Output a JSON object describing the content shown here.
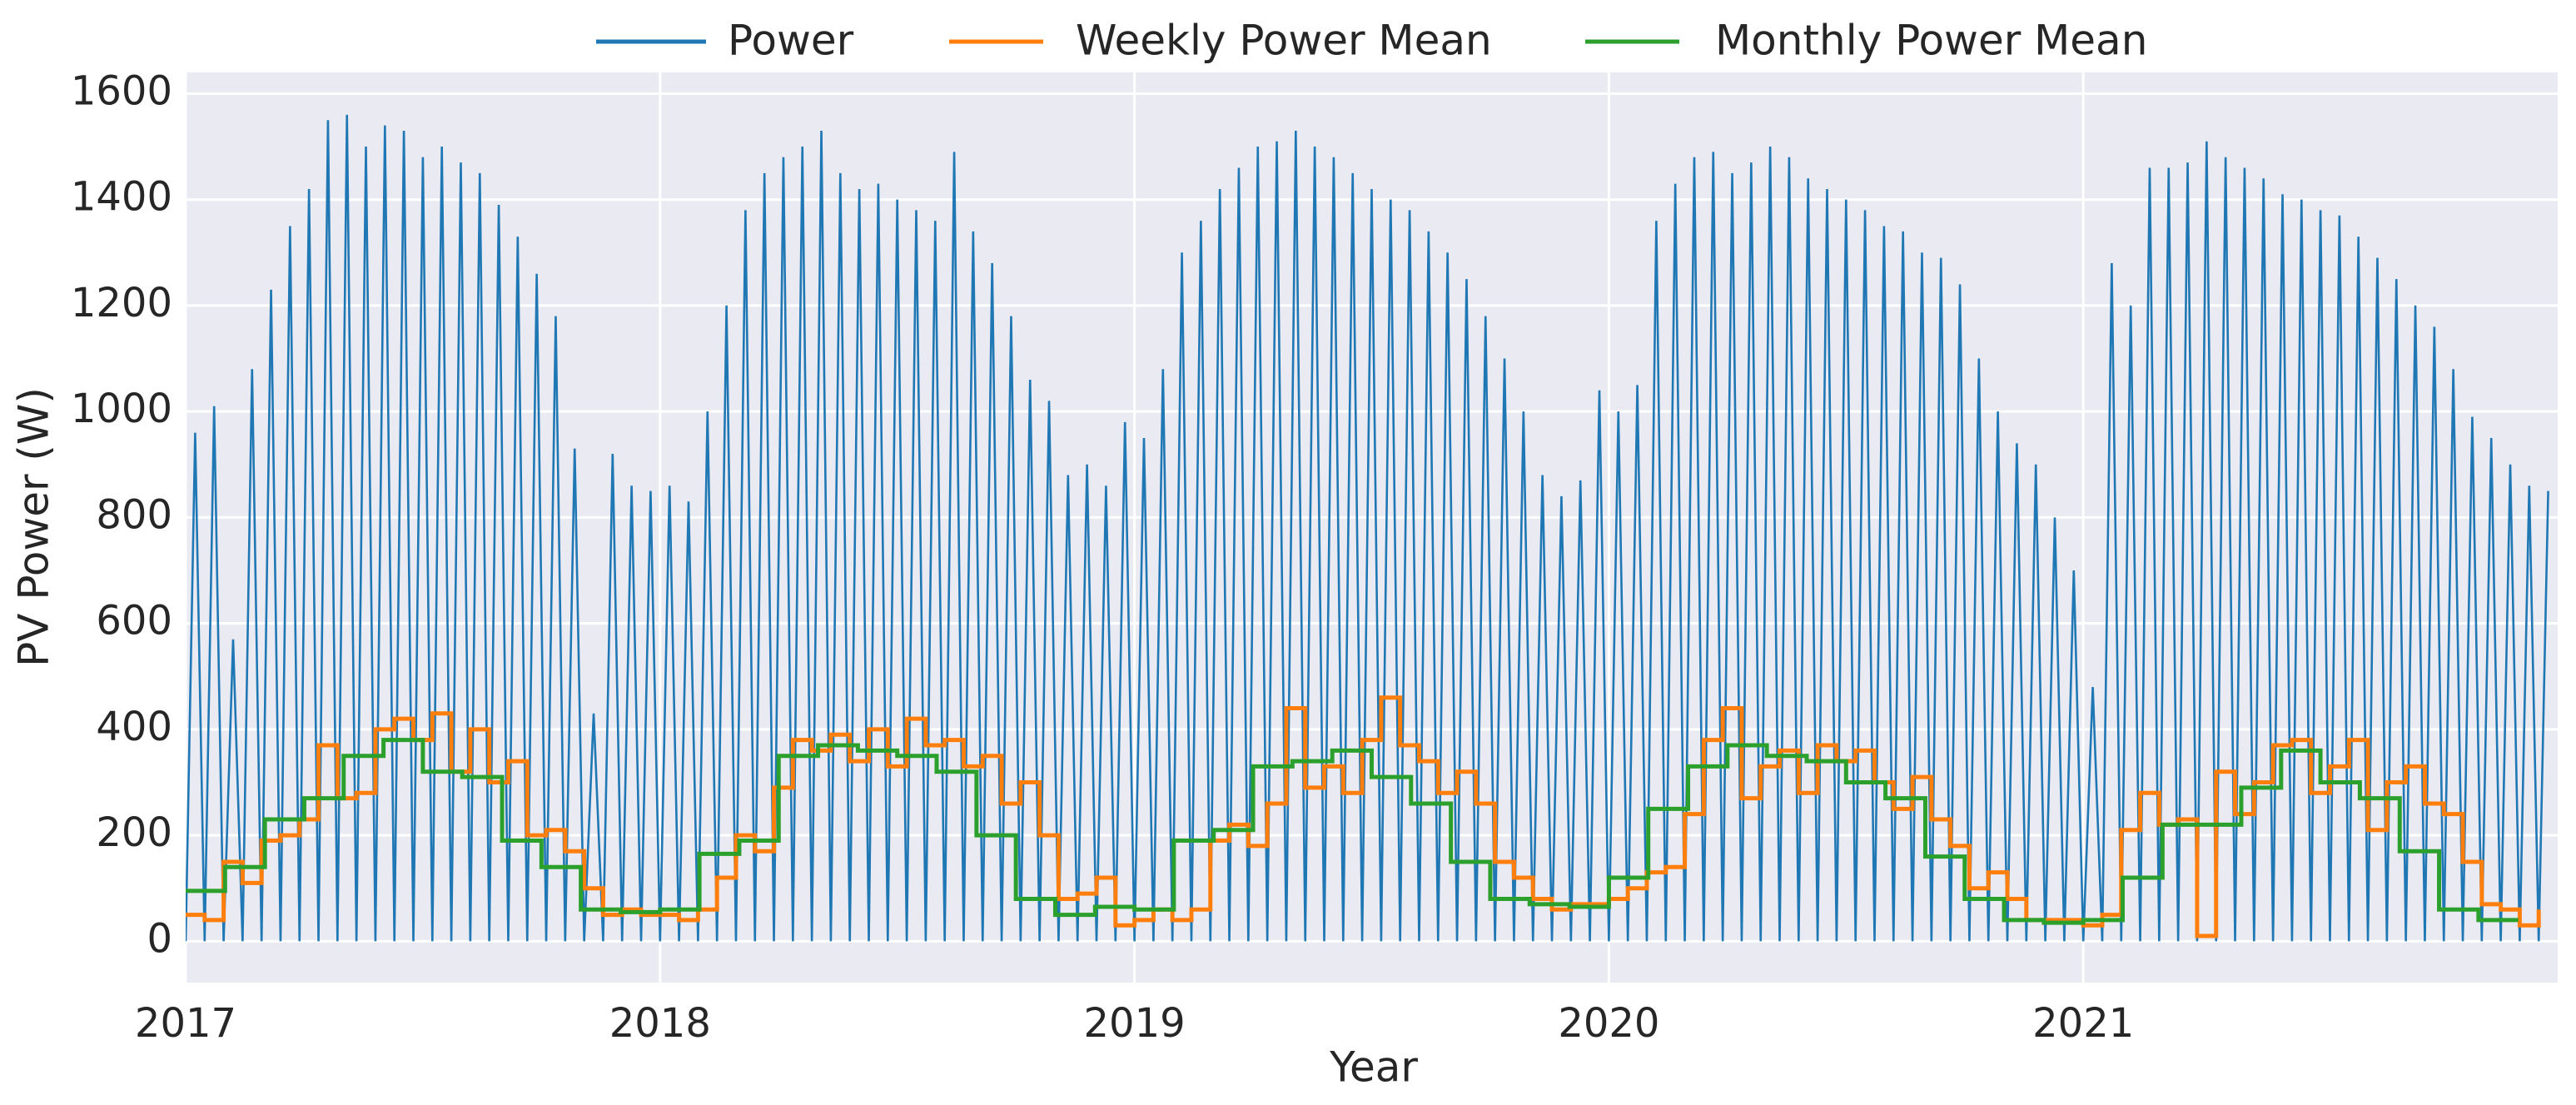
{
  "chart_data": {
    "type": "line",
    "xlabel": "Year",
    "ylabel": "PV Power (W)",
    "xlim": [
      2017,
      2022
    ],
    "ylim": [
      -78,
      1640
    ],
    "xticks": [
      2017,
      2018,
      2019,
      2020,
      2021
    ],
    "yticks": [
      0,
      200,
      400,
      600,
      800,
      1000,
      1200,
      1400,
      1600
    ],
    "grid": true,
    "legend": "top",
    "series": [
      {
        "name": "Power",
        "color": "#1f77b4",
        "x": [
          2017,
          2017.02,
          2017.04,
          2017.06,
          2017.08,
          2017.1,
          2017.12,
          2017.14,
          2017.16,
          2017.18,
          2017.2,
          2017.22,
          2017.24,
          2017.26,
          2017.28,
          2017.3,
          2017.32,
          2017.34,
          2017.36,
          2017.38,
          2017.4,
          2017.42,
          2017.44,
          2017.46,
          2017.48,
          2017.5,
          2017.52,
          2017.54,
          2017.56,
          2017.58,
          2017.6,
          2017.62,
          2017.64,
          2017.66,
          2017.68,
          2017.7,
          2017.72,
          2017.74,
          2017.76,
          2017.78,
          2017.8,
          2017.82,
          2017.84,
          2017.86,
          2017.88,
          2017.9,
          2017.92,
          2017.94,
          2017.96,
          2017.98,
          2018,
          2018.02,
          2018.04,
          2018.06,
          2018.08,
          2018.1,
          2018.12,
          2018.14,
          2018.16,
          2018.18,
          2018.2,
          2018.22,
          2018.24,
          2018.26,
          2018.28,
          2018.3,
          2018.32,
          2018.34,
          2018.36,
          2018.38,
          2018.4,
          2018.42,
          2018.44,
          2018.46,
          2018.48,
          2018.5,
          2018.52,
          2018.54,
          2018.56,
          2018.58,
          2018.6,
          2018.62,
          2018.64,
          2018.66,
          2018.68,
          2018.7,
          2018.72,
          2018.74,
          2018.76,
          2018.78,
          2018.8,
          2018.82,
          2018.84,
          2018.86,
          2018.88,
          2018.9,
          2018.92,
          2018.94,
          2018.96,
          2018.98,
          2019,
          2019.02,
          2019.04,
          2019.06,
          2019.08,
          2019.1,
          2019.12,
          2019.14,
          2019.16,
          2019.18,
          2019.2,
          2019.22,
          2019.24,
          2019.26,
          2019.28,
          2019.3,
          2019.32,
          2019.34,
          2019.36,
          2019.38,
          2019.4,
          2019.42,
          2019.44,
          2019.46,
          2019.48,
          2019.5,
          2019.52,
          2019.54,
          2019.56,
          2019.58,
          2019.6,
          2019.62,
          2019.64,
          2019.66,
          2019.68,
          2019.7,
          2019.72,
          2019.74,
          2019.76,
          2019.78,
          2019.8,
          2019.82,
          2019.84,
          2019.86,
          2019.88,
          2019.9,
          2019.92,
          2019.94,
          2019.96,
          2019.98,
          2020,
          2020.02,
          2020.04,
          2020.06,
          2020.08,
          2020.1,
          2020.12,
          2020.14,
          2020.16,
          2020.18,
          2020.2,
          2020.22,
          2020.24,
          2020.26,
          2020.28,
          2020.3,
          2020.32,
          2020.34,
          2020.36,
          2020.38,
          2020.4,
          2020.42,
          2020.44,
          2020.46,
          2020.48,
          2020.5,
          2020.52,
          2020.54,
          2020.56,
          2020.58,
          2020.6,
          2020.62,
          2020.64,
          2020.66,
          2020.68,
          2020.7,
          2020.72,
          2020.74,
          2020.76,
          2020.78,
          2020.8,
          2020.82,
          2020.84,
          2020.86,
          2020.88,
          2020.9,
          2020.92,
          2020.94,
          2020.96,
          2020.98,
          2021,
          2021.02,
          2021.04,
          2021.06,
          2021.08,
          2021.1,
          2021.12,
          2021.14,
          2021.16,
          2021.18,
          2021.2,
          2021.22,
          2021.24,
          2021.26,
          2021.28,
          2021.3,
          2021.32,
          2021.34,
          2021.36,
          2021.38,
          2021.4,
          2021.42,
          2021.44,
          2021.46,
          2021.48,
          2021.5,
          2021.52,
          2021.54,
          2021.56,
          2021.58,
          2021.6,
          2021.62,
          2021.64,
          2021.66,
          2021.68,
          2021.7,
          2021.72,
          2021.74,
          2021.76,
          2021.78,
          2021.8,
          2021.82,
          2021.84,
          2021.86,
          2021.88,
          2021.9,
          2021.92,
          2021.94,
          2021.96,
          2021.98
        ],
        "values": [
          0,
          960,
          0,
          1010,
          0,
          570,
          0,
          1080,
          0,
          1230,
          0,
          1350,
          0,
          1420,
          0,
          1550,
          0,
          1560,
          0,
          1500,
          0,
          1540,
          0,
          1530,
          0,
          1480,
          0,
          1500,
          0,
          1470,
          0,
          1450,
          0,
          1390,
          0,
          1330,
          0,
          1260,
          0,
          1180,
          0,
          930,
          0,
          430,
          0,
          920,
          0,
          860,
          0,
          850,
          0,
          860,
          0,
          830,
          0,
          1000,
          0,
          1200,
          0,
          1380,
          0,
          1450,
          0,
          1480,
          0,
          1500,
          0,
          1530,
          0,
          1450,
          0,
          1420,
          0,
          1430,
          0,
          1400,
          0,
          1380,
          0,
          1360,
          0,
          1490,
          0,
          1340,
          0,
          1280,
          0,
          1180,
          0,
          1060,
          0,
          1020,
          0,
          880,
          0,
          900,
          0,
          860,
          0,
          980,
          0,
          950,
          0,
          1080,
          0,
          1300,
          0,
          1360,
          0,
          1420,
          0,
          1460,
          0,
          1500,
          0,
          1510,
          0,
          1530,
          0,
          1500,
          0,
          1480,
          0,
          1450,
          0,
          1420,
          0,
          1400,
          0,
          1380,
          0,
          1340,
          0,
          1300,
          0,
          1250,
          0,
          1180,
          0,
          1100,
          0,
          1000,
          0,
          880,
          0,
          840,
          0,
          870,
          0,
          1040,
          0,
          1000,
          0,
          1050,
          0,
          1360,
          0,
          1430,
          0,
          1480,
          0,
          1490,
          0,
          1450,
          0,
          1470,
          0,
          1500,
          0,
          1480,
          0,
          1440,
          0,
          1420,
          0,
          1400,
          0,
          1380,
          0,
          1350,
          0,
          1340,
          0,
          1300,
          0,
          1290,
          0,
          1240,
          0,
          1100,
          0,
          1000,
          0,
          940,
          0,
          900,
          0,
          800,
          0,
          700,
          0,
          480,
          0,
          1280,
          0,
          1200,
          0,
          1460,
          0,
          1460,
          0,
          1470,
          0,
          1510,
          0,
          1480,
          0,
          1460,
          0,
          1440,
          0,
          1410,
          0,
          1400,
          0,
          1380,
          0,
          1370,
          0,
          1330,
          0,
          1290,
          0,
          1250,
          0,
          1200,
          0,
          1160,
          0,
          1080,
          0,
          990,
          0,
          950,
          0,
          900,
          0,
          860,
          0,
          850
        ]
      },
      {
        "name": "Weekly Power Mean",
        "color": "#ff7f0e",
        "drawstyle": "steps-post",
        "x": [
          2017,
          2017.04,
          2017.08,
          2017.12,
          2017.16,
          2017.2,
          2017.24,
          2017.28,
          2017.32,
          2017.36,
          2017.4,
          2017.44,
          2017.48,
          2017.52,
          2017.56,
          2017.6,
          2017.64,
          2017.68,
          2017.72,
          2017.76,
          2017.8,
          2017.84,
          2017.88,
          2017.92,
          2017.96,
          2018,
          2018.04,
          2018.08,
          2018.12,
          2018.16,
          2018.2,
          2018.24,
          2018.28,
          2018.32,
          2018.36,
          2018.4,
          2018.44,
          2018.48,
          2018.52,
          2018.56,
          2018.6,
          2018.64,
          2018.68,
          2018.72,
          2018.76,
          2018.8,
          2018.84,
          2018.88,
          2018.92,
          2018.96,
          2019,
          2019.04,
          2019.08,
          2019.12,
          2019.16,
          2019.2,
          2019.24,
          2019.28,
          2019.32,
          2019.36,
          2019.4,
          2019.44,
          2019.48,
          2019.52,
          2019.56,
          2019.6,
          2019.64,
          2019.68,
          2019.72,
          2019.76,
          2019.8,
          2019.84,
          2019.88,
          2019.92,
          2019.96,
          2020,
          2020.04,
          2020.08,
          2020.12,
          2020.16,
          2020.2,
          2020.24,
          2020.28,
          2020.32,
          2020.36,
          2020.4,
          2020.44,
          2020.48,
          2020.52,
          2020.56,
          2020.6,
          2020.64,
          2020.68,
          2020.72,
          2020.76,
          2020.8,
          2020.84,
          2020.88,
          2020.92,
          2020.96,
          2021,
          2021.04,
          2021.08,
          2021.12,
          2021.16,
          2021.2,
          2021.24,
          2021.28,
          2021.32,
          2021.36,
          2021.4,
          2021.44,
          2021.48,
          2021.52,
          2021.56,
          2021.6,
          2021.64,
          2021.68,
          2021.72,
          2021.76,
          2021.8,
          2021.84,
          2021.88,
          2021.92,
          2021.96
        ],
        "values": [
          50,
          40,
          150,
          110,
          190,
          200,
          230,
          370,
          270,
          280,
          400,
          420,
          380,
          430,
          320,
          400,
          300,
          340,
          200,
          210,
          170,
          100,
          50,
          60,
          50,
          50,
          40,
          60,
          120,
          200,
          170,
          290,
          380,
          360,
          390,
          340,
          400,
          330,
          420,
          370,
          380,
          330,
          350,
          260,
          300,
          200,
          80,
          90,
          120,
          30,
          40,
          60,
          40,
          60,
          190,
          220,
          180,
          260,
          440,
          290,
          330,
          280,
          380,
          460,
          370,
          340,
          280,
          320,
          260,
          150,
          120,
          80,
          60,
          70,
          70,
          80,
          100,
          130,
          140,
          240,
          380,
          440,
          270,
          330,
          360,
          280,
          370,
          340,
          360,
          300,
          250,
          310,
          230,
          180,
          100,
          130,
          80,
          40,
          40,
          40,
          30,
          50,
          210,
          280,
          220,
          230,
          10,
          320,
          240,
          300,
          370,
          380,
          280,
          330,
          380,
          210,
          300,
          330,
          260,
          240,
          150,
          70,
          60,
          30,
          60
        ]
      },
      {
        "name": "Monthly Power Mean",
        "color": "#2ca02c",
        "drawstyle": "steps-post",
        "x": [
          2017,
          2017.083,
          2017.167,
          2017.25,
          2017.333,
          2017.417,
          2017.5,
          2017.583,
          2017.667,
          2017.75,
          2017.833,
          2017.917,
          2018,
          2018.083,
          2018.167,
          2018.25,
          2018.333,
          2018.417,
          2018.5,
          2018.583,
          2018.667,
          2018.75,
          2018.833,
          2018.917,
          2019,
          2019.083,
          2019.167,
          2019.25,
          2019.333,
          2019.417,
          2019.5,
          2019.583,
          2019.667,
          2019.75,
          2019.833,
          2019.917,
          2020,
          2020.083,
          2020.167,
          2020.25,
          2020.333,
          2020.417,
          2020.5,
          2020.583,
          2020.667,
          2020.75,
          2020.833,
          2020.917,
          2021,
          2021.083,
          2021.167,
          2021.25,
          2021.333,
          2021.417,
          2021.5,
          2021.583,
          2021.667,
          2021.75,
          2021.833,
          2021.917
        ],
        "values": [
          95,
          140,
          230,
          270,
          350,
          380,
          320,
          310,
          190,
          140,
          60,
          55,
          60,
          165,
          190,
          350,
          370,
          360,
          350,
          320,
          200,
          80,
          50,
          65,
          60,
          190,
          210,
          330,
          340,
          360,
          310,
          260,
          150,
          80,
          70,
          65,
          120,
          250,
          330,
          370,
          350,
          340,
          300,
          270,
          160,
          80,
          40,
          35,
          40,
          120,
          220,
          220,
          290,
          360,
          300,
          270,
          170,
          60,
          40,
          40
        ]
      }
    ]
  }
}
